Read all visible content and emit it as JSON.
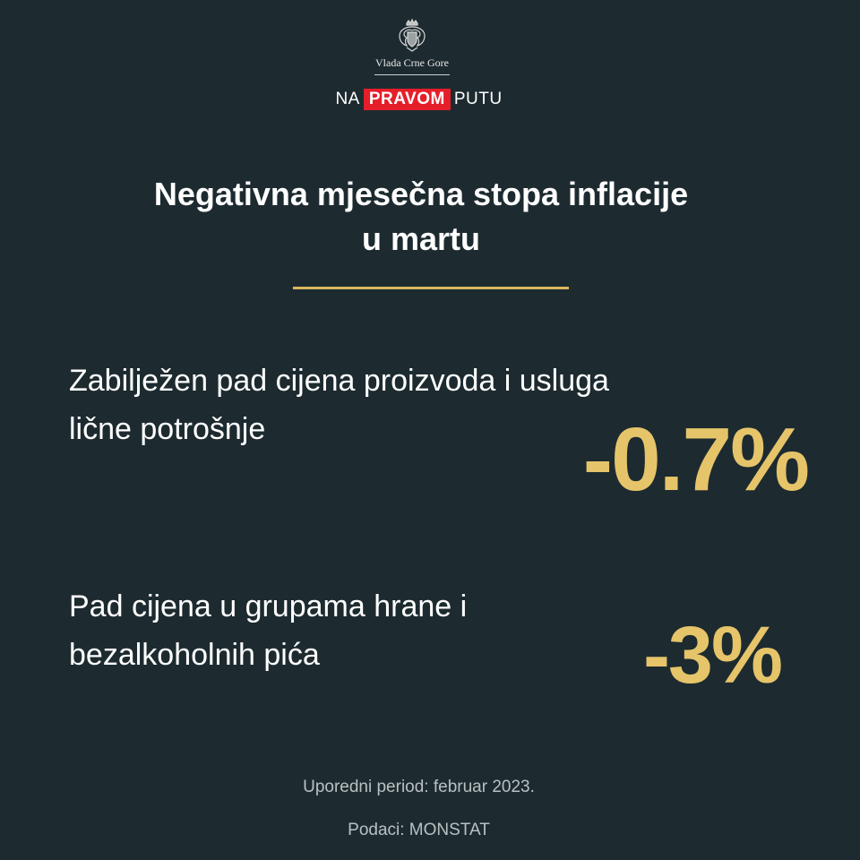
{
  "header": {
    "logo_icon": "coat-of-arms-icon",
    "org_name": "Vlada Crne Gore",
    "slogan_left": "NA",
    "slogan_highlight": "PRAVOM",
    "slogan_right": "PUTU",
    "highlight_color": "#e51e2a"
  },
  "title": {
    "line1": "Negativna mjesečna stopa inflacije",
    "line2": "u martu"
  },
  "accent_color": "#e6c46a",
  "stats": [
    {
      "line1": "Zabilježen pad cijena proizvoda i usluga",
      "line2": "lične potrošnje",
      "value": "-0.7%"
    },
    {
      "line1": "Pad cijena u grupama hrane i",
      "line2": "bezalkoholnih pića",
      "value": "-3%"
    }
  ],
  "footer": {
    "period": "Uporedni period: februar 2023.",
    "source": "Podaci: MONSTAT"
  }
}
